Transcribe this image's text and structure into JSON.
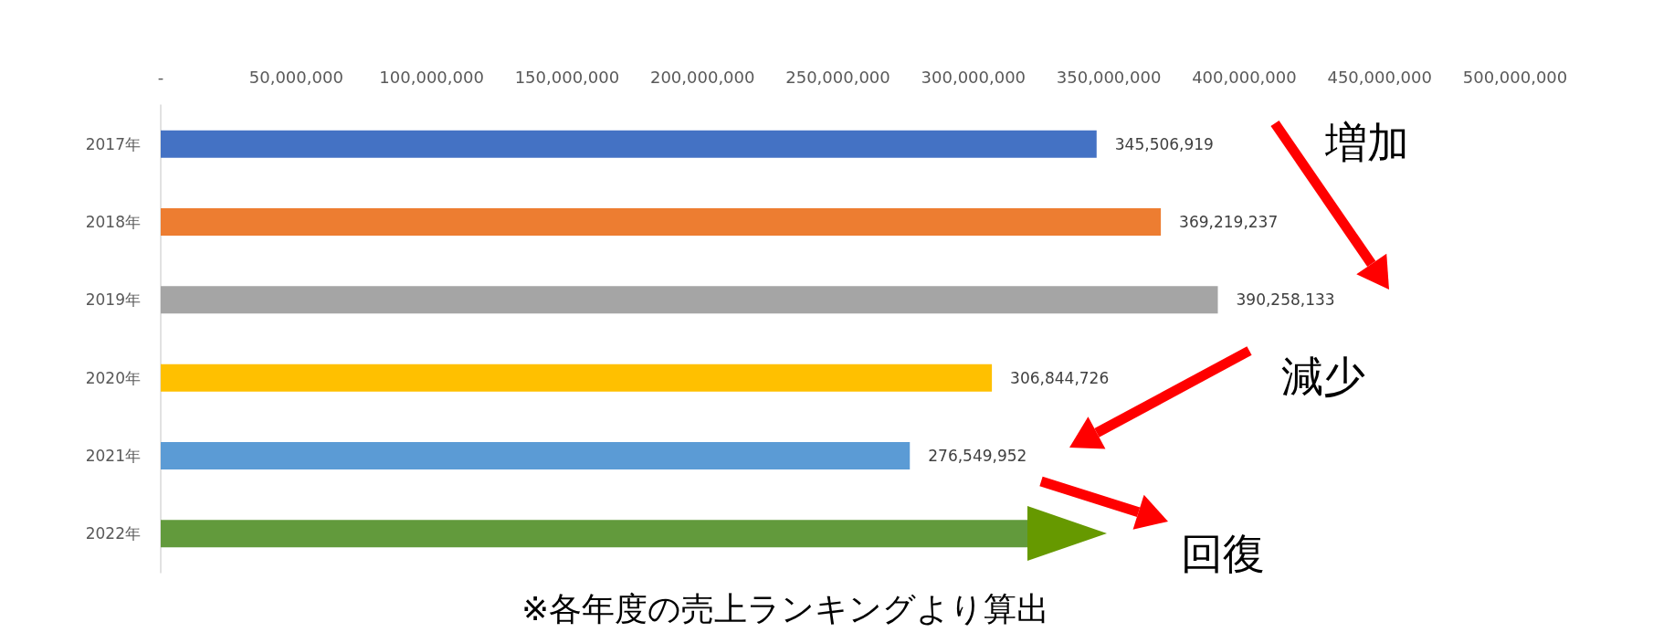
{
  "chart_data": {
    "type": "bar",
    "orientation": "horizontal",
    "categories": [
      "2017年",
      "2018年",
      "2019年",
      "2020年",
      "2021年",
      "2022年"
    ],
    "values": [
      345506919,
      369219237,
      390258133,
      306844726,
      276549952,
      320000000
    ],
    "colors": [
      "#4472c4",
      "#ed7d31",
      "#a5a5a5",
      "#ffc000",
      "#5b9bd5",
      "#629a3c"
    ],
    "value_labels": [
      "345,506,919",
      "369,219,237",
      "390,258,133",
      "306,844,726",
      "276,549,952",
      null
    ],
    "xlim": [
      0,
      500000000
    ],
    "xticks": [
      {
        "value": 0,
        "label": "-"
      },
      {
        "value": 50000000,
        "label": "50,000,000"
      },
      {
        "value": 100000000,
        "label": "100,000,000"
      },
      {
        "value": 150000000,
        "label": "150,000,000"
      },
      {
        "value": 200000000,
        "label": "200,000,000"
      },
      {
        "value": 250000000,
        "label": "250,000,000"
      },
      {
        "value": 300000000,
        "label": "300,000,000"
      },
      {
        "value": 350000000,
        "label": "350,000,000"
      },
      {
        "value": 400000000,
        "label": "400,000,000"
      },
      {
        "value": 450000000,
        "label": "450,000,000"
      },
      {
        "value": 500000000,
        "label": "500,000,000"
      }
    ],
    "grid": false,
    "annotations": [
      "増加",
      "減少",
      "回復",
      "※各年度の売上ランキングより算出"
    ]
  }
}
